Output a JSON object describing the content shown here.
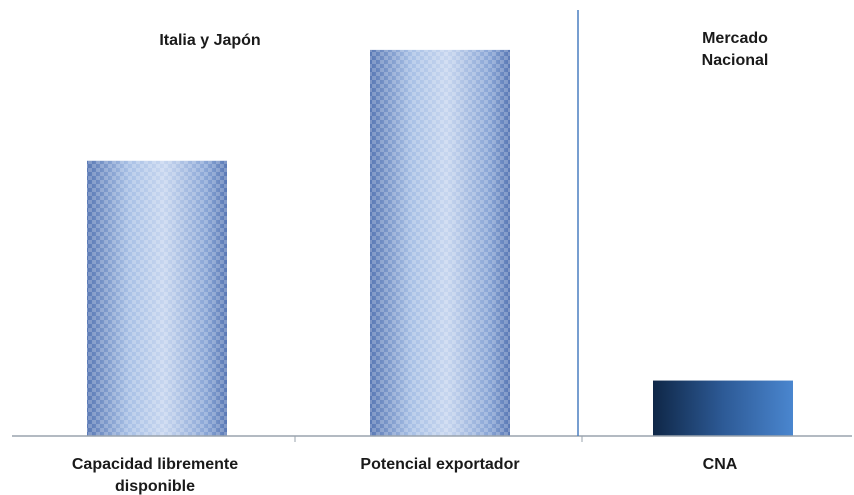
{
  "chart_data": {
    "type": "bar",
    "categories": [
      "Capacidad libremente disponible",
      "Potencial exportador",
      "CNA"
    ],
    "values": [
      278,
      390,
      56
    ],
    "ylim": [
      0,
      400
    ],
    "grid": false,
    "legend": "none",
    "sections": [
      {
        "label": "Italia y Japón",
        "categories": [
          "Capacidad libremente disponible",
          "Potencial exportador"
        ]
      },
      {
        "label": "Mercado Nacional",
        "categories": [
          "CNA"
        ]
      }
    ]
  },
  "labels": {
    "section_left": "Italia y Japón",
    "section_right": "Mercado Nacional",
    "category_1": "Capacidad libremente disponible",
    "category_2": "Potencial exportador",
    "category_3": "CNA"
  },
  "colors": {
    "bar_light": "#a9c1e6",
    "bar_mid": "#7d9bd0",
    "bar_dark": "#5a79b5",
    "bar_cna_dark": "#1c3a66",
    "bar_cna_light": "#3f74b8",
    "divider": "#4a7fc1",
    "axis": "#9aa3ad"
  }
}
